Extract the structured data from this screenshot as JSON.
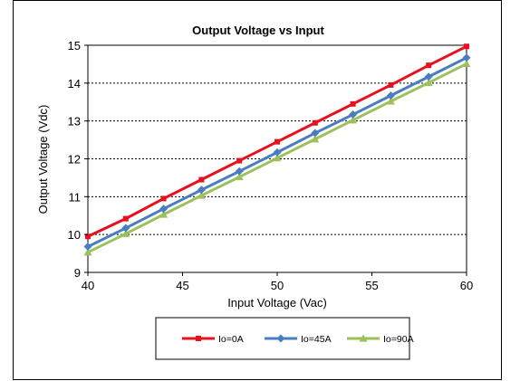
{
  "chart_data": {
    "type": "line",
    "title": "Output Voltage vs Input",
    "xlabel": "Input Voltage (Vac)",
    "ylabel": "Output Voltage (Vdc)",
    "xlim": [
      40,
      60
    ],
    "ylim": [
      9,
      15
    ],
    "xticks": [
      40,
      45,
      50,
      55,
      60
    ],
    "yticks": [
      9,
      10,
      11,
      12,
      13,
      14,
      15
    ],
    "grid": "horizontal-dashed",
    "legend": "bottom",
    "x": [
      40,
      42,
      44,
      46,
      48,
      50,
      52,
      54,
      56,
      58,
      60
    ],
    "series": [
      {
        "name": "Io=0A",
        "color": "#e8101e",
        "marker": "square",
        "values": [
          9.95,
          10.42,
          10.95,
          11.45,
          11.95,
          12.45,
          12.95,
          13.45,
          13.95,
          14.47,
          14.97
        ]
      },
      {
        "name": "Io=45A",
        "color": "#4a7dc0",
        "marker": "diamond",
        "values": [
          9.68,
          10.17,
          10.68,
          11.18,
          11.67,
          12.17,
          12.68,
          13.17,
          13.67,
          14.17,
          14.67
        ]
      },
      {
        "name": "Io=90A",
        "color": "#9bc25a",
        "marker": "triangle",
        "values": [
          9.53,
          10.02,
          10.53,
          11.03,
          11.52,
          12.02,
          12.52,
          13.02,
          13.52,
          14.01,
          14.51
        ]
      }
    ]
  }
}
